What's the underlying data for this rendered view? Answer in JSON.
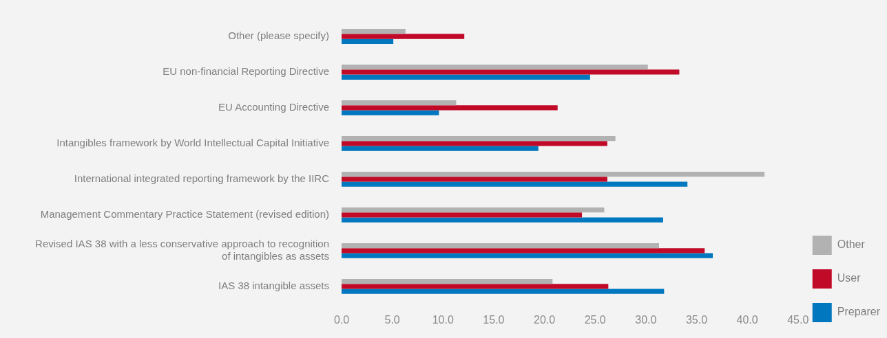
{
  "chart_data": {
    "type": "bar",
    "orientation": "horizontal",
    "categories": [
      "Other (please specify)",
      "EU non-financial Reporting Directive",
      "EU Accounting Directive",
      "Intangibles framework by World Intellectual Capital Initiative",
      "International integrated reporting framework by the IIRC",
      "Management Commentary Practice Statement (revised edition)",
      "Revised IAS 38 with a less conservative approach to recognition of intangibles as assets",
      "IAS 38 intangible assets"
    ],
    "series": [
      {
        "name": "Other",
        "color": "#b2b2b2",
        "values": [
          6.3,
          30.2,
          11.3,
          27.0,
          41.7,
          25.9,
          31.3,
          20.8
        ]
      },
      {
        "name": "User",
        "color": "#c00a27",
        "values": [
          12.1,
          33.3,
          21.3,
          26.2,
          26.2,
          23.7,
          35.8,
          26.3
        ]
      },
      {
        "name": "Preparer",
        "color": "#0077be",
        "values": [
          5.1,
          24.5,
          9.6,
          19.4,
          34.1,
          31.7,
          36.6,
          31.8
        ]
      }
    ],
    "xlim": [
      0,
      45
    ],
    "xticks": [
      {
        "value": 0,
        "label": "0.0"
      },
      {
        "value": 5,
        "label": "5.0"
      },
      {
        "value": 10,
        "label": "10.0"
      },
      {
        "value": 15,
        "label": "15.0"
      },
      {
        "value": 20,
        "label": "20.0"
      },
      {
        "value": 25,
        "label": "25.0"
      },
      {
        "value": 30,
        "label": "30.0"
      },
      {
        "value": 35,
        "label": "35.0"
      },
      {
        "value": 40,
        "label": "40.0"
      },
      {
        "value": 45,
        "label": "45.0"
      }
    ],
    "grid": false,
    "legend": "right"
  }
}
